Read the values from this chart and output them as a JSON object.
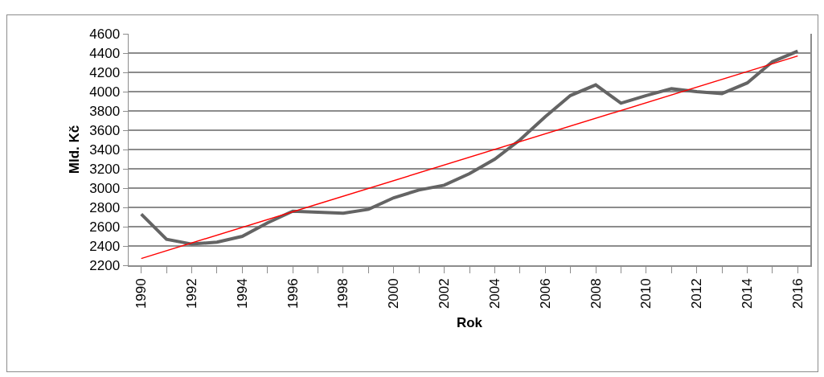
{
  "chart_data": {
    "type": "line",
    "xlabel": "Rok",
    "ylabel": "Mld. Kč",
    "x": [
      1990,
      1991,
      1992,
      1993,
      1994,
      1995,
      1996,
      1997,
      1998,
      1999,
      2000,
      2001,
      2002,
      2003,
      2004,
      2005,
      2006,
      2007,
      2008,
      2009,
      2010,
      2011,
      2012,
      2013,
      2014,
      2015,
      2016
    ],
    "series": [
      {
        "color": "#646464",
        "values": [
          2730,
          2470,
          2420,
          2440,
          2500,
          2640,
          2760,
          2750,
          2740,
          2780,
          2900,
          2980,
          3030,
          3150,
          3300,
          3500,
          3740,
          3960,
          4070,
          3880,
          3960,
          4030,
          4000,
          3980,
          4090,
          4310,
          4420
        ]
      },
      {
        "type": "line",
        "color": "#ff0000",
        "x": [
          1990,
          2016
        ],
        "values": [
          2270,
          4370
        ]
      }
    ],
    "xlim": [
      1989.5,
      2016.5
    ],
    "xticks": [
      1990,
      {
        "value": 1991,
        "label": null
      },
      1992,
      {
        "value": 1993,
        "label": null
      },
      1994,
      {
        "value": 1995,
        "label": null
      },
      1996,
      {
        "value": 1997,
        "label": null
      },
      1998,
      {
        "value": 1999,
        "label": null
      },
      2000,
      {
        "value": 2001,
        "label": null
      },
      2002,
      {
        "value": 2003,
        "label": null
      },
      2004,
      {
        "value": 2005,
        "label": null
      },
      2006,
      {
        "value": 2007,
        "label": null
      },
      2008,
      {
        "value": 2009,
        "label": null
      },
      2010,
      {
        "value": 2011,
        "label": null
      },
      2012,
      {
        "value": 2013,
        "label": null
      },
      2014,
      {
        "value": 2015,
        "label": null
      },
      2016
    ],
    "ylim": [
      2200,
      4600
    ],
    "yticks": [
      2200,
      2400,
      2600,
      2800,
      3000,
      3200,
      3400,
      3600,
      3800,
      4000,
      4200,
      4400,
      4600
    ],
    "grid": "y",
    "marker": "none",
    "line_style": "solid"
  }
}
